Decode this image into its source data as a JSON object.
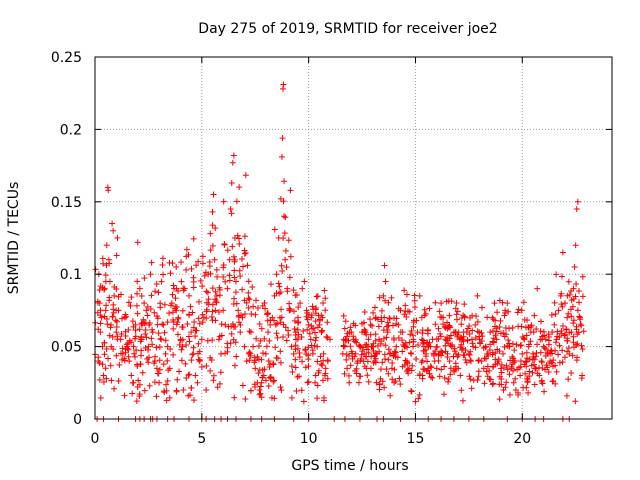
{
  "chart_data": {
    "type": "scatter",
    "title": "Day 275 of 2019, SRMTID for receiver joe2",
    "xlabel": "GPS time / hours",
    "ylabel": "SRMTID / TECUs",
    "xlim": [
      0,
      24.2
    ],
    "ylim": [
      0,
      0.25
    ],
    "xticks": [
      0,
      5,
      10,
      15,
      20
    ],
    "xtick_labels": [
      "0",
      "5",
      "10",
      "15",
      "20"
    ],
    "yticks": [
      0,
      0.05,
      0.1,
      0.15,
      0.2,
      0.25
    ],
    "ytick_labels": [
      "0",
      "0.05",
      "0.1",
      "0.15",
      "0.2",
      "0.25"
    ],
    "grid": true,
    "marker": "+",
    "colors": {
      "marker": "#ff0000",
      "grid": "#a0a0a0",
      "axis": "#000000"
    },
    "series": [
      {
        "name": "SRMTID",
        "points": [
          [
            0.15,
            0.04
          ],
          [
            0.18,
            0.1
          ],
          [
            0.22,
            0.08
          ],
          [
            0.25,
            0.06
          ],
          [
            0.3,
            0.07
          ],
          [
            0.35,
            0.05
          ],
          [
            0.4,
            0.03
          ],
          [
            0.45,
            0.09
          ],
          [
            0.5,
            0.075
          ],
          [
            0.55,
            0.12
          ],
          [
            0.6,
            0.16
          ],
          [
            0.62,
            0.158
          ],
          [
            0.65,
            0.11
          ],
          [
            0.7,
            0.095
          ],
          [
            0.75,
            0.065
          ],
          [
            0.8,
            0.135
          ],
          [
            0.85,
            0.13
          ],
          [
            0.9,
            0.085
          ],
          [
            1.0,
            0.06
          ],
          [
            1.1,
            0.075
          ],
          [
            1.2,
            0.055
          ],
          [
            1.3,
            0.045
          ],
          [
            1.4,
            0.07
          ],
          [
            1.5,
            0.05
          ],
          [
            1.6,
            0.04
          ],
          [
            1.7,
            0.03
          ],
          [
            1.8,
            0.025
          ],
          [
            1.9,
            0.065
          ],
          [
            2.0,
            0.122
          ],
          [
            2.1,
            0.09
          ],
          [
            2.2,
            0.065
          ],
          [
            2.3,
            0.08
          ],
          [
            2.4,
            0.075
          ],
          [
            2.5,
            0.05
          ],
          [
            2.6,
            0.1
          ],
          [
            2.65,
            0.108
          ],
          [
            2.7,
            0.06
          ],
          [
            2.8,
            0.04
          ],
          [
            2.9,
            0.035
          ],
          [
            3.0,
            0.025
          ],
          [
            3.1,
            0.055
          ],
          [
            3.2,
            0.065
          ],
          [
            3.3,
            0.045
          ],
          [
            3.4,
            0.05
          ],
          [
            3.5,
            0.035
          ],
          [
            3.6,
            0.08
          ],
          [
            3.7,
            0.09
          ],
          [
            3.8,
            0.105
          ],
          [
            3.9,
            0.07
          ],
          [
            4.0,
            0.055
          ],
          [
            4.1,
            0.05
          ],
          [
            4.2,
            0.09
          ],
          [
            4.3,
            0.117
          ],
          [
            4.4,
            0.085
          ],
          [
            4.5,
            0.06
          ],
          [
            4.6,
            0.045
          ],
          [
            4.7,
            0.03
          ],
          [
            4.8,
            0.025
          ],
          [
            4.9,
            0.04
          ],
          [
            5.0,
            0.055
          ],
          [
            5.1,
            0.07
          ],
          [
            5.2,
            0.02
          ],
          [
            5.3,
            0.1
          ],
          [
            5.4,
            0.128
          ],
          [
            5.5,
            0.143
          ],
          [
            5.55,
            0.155
          ],
          [
            5.6,
            0.11
          ],
          [
            5.7,
            0.085
          ],
          [
            5.8,
            0.055
          ],
          [
            5.9,
            0.045
          ],
          [
            6.0,
            0.075
          ],
          [
            6.1,
            0.065
          ],
          [
            6.2,
            0.09
          ],
          [
            6.3,
            0.11
          ],
          [
            6.35,
            0.145
          ],
          [
            6.4,
            0.163
          ],
          [
            6.45,
            0.177
          ],
          [
            6.5,
            0.182
          ],
          [
            6.55,
            0.125
          ],
          [
            6.6,
            0.095
          ],
          [
            6.7,
            0.075
          ],
          [
            6.8,
            0.06
          ],
          [
            6.9,
            0.07
          ],
          [
            7.0,
            0.05
          ],
          [
            7.1,
            0.04
          ],
          [
            7.2,
            0.045
          ],
          [
            7.3,
            0.06
          ],
          [
            7.4,
            0.05
          ],
          [
            7.5,
            0.035
          ],
          [
            7.6,
            0.025
          ],
          [
            7.7,
            0.02
          ],
          [
            7.8,
            0.015
          ],
          [
            7.9,
            0.03
          ],
          [
            8.0,
            0.045
          ],
          [
            8.1,
            0.06
          ],
          [
            8.2,
            0.065
          ],
          [
            8.3,
            0.07
          ],
          [
            8.4,
            0.085
          ],
          [
            8.5,
            0.1
          ],
          [
            8.6,
            0.125
          ],
          [
            8.7,
            0.152
          ],
          [
            8.75,
            0.181
          ],
          [
            8.78,
            0.194
          ],
          [
            8.8,
            0.228
          ],
          [
            8.82,
            0.231
          ],
          [
            8.85,
            0.14
          ],
          [
            8.9,
            0.11
          ],
          [
            9.0,
            0.09
          ],
          [
            9.1,
            0.075
          ],
          [
            9.2,
            0.05
          ],
          [
            9.3,
            0.045
          ],
          [
            9.4,
            0.06
          ],
          [
            9.5,
            0.07
          ],
          [
            9.6,
            0.08
          ],
          [
            9.7,
            0.09
          ],
          [
            9.8,
            0.095
          ],
          [
            9.9,
            0.075
          ],
          [
            10.0,
            0.065
          ],
          [
            10.1,
            0.055
          ],
          [
            10.2,
            0.045
          ],
          [
            10.3,
            0.025
          ],
          [
            10.4,
            0.05
          ],
          [
            10.5,
            0.065
          ],
          [
            10.6,
            0.06
          ],
          [
            10.7,
            0.045
          ],
          [
            10.8,
            0.035
          ],
          [
            10.9,
            0.04
          ],
          [
            11.0,
            0.055
          ],
          [
            11.6,
            0.045
          ],
          [
            11.7,
            0.05
          ],
          [
            11.8,
            0.035
          ],
          [
            11.9,
            0.025
          ],
          [
            12.0,
            0.06
          ],
          [
            12.1,
            0.055
          ],
          [
            12.2,
            0.045
          ],
          [
            12.3,
            0.04
          ],
          [
            12.4,
            0.05
          ],
          [
            12.5,
            0.06
          ],
          [
            12.6,
            0.045
          ],
          [
            12.7,
            0.035
          ],
          [
            12.8,
            0.055
          ],
          [
            12.9,
            0.065
          ],
          [
            13.0,
            0.05
          ],
          [
            13.1,
            0.04
          ],
          [
            13.2,
            0.045
          ],
          [
            13.3,
            0.055
          ],
          [
            13.4,
            0.07
          ],
          [
            13.5,
            0.085
          ],
          [
            13.55,
            0.106
          ],
          [
            13.6,
            0.095
          ],
          [
            13.7,
            0.06
          ],
          [
            13.8,
            0.045
          ],
          [
            13.9,
            0.035
          ],
          [
            14.0,
            0.025
          ],
          [
            14.1,
            0.05
          ],
          [
            14.2,
            0.065
          ],
          [
            14.3,
            0.075
          ],
          [
            14.4,
            0.06
          ],
          [
            14.5,
            0.05
          ],
          [
            14.6,
            0.04
          ],
          [
            14.7,
            0.035
          ],
          [
            14.8,
            0.045
          ],
          [
            14.9,
            0.055
          ],
          [
            15.0,
            0.012
          ],
          [
            15.1,
            0.06
          ],
          [
            15.2,
            0.085
          ],
          [
            15.3,
            0.07
          ],
          [
            15.4,
            0.05
          ],
          [
            15.5,
            0.045
          ],
          [
            15.6,
            0.035
          ],
          [
            15.7,
            0.05
          ],
          [
            15.8,
            0.055
          ],
          [
            15.9,
            0.04
          ],
          [
            16.0,
            0.035
          ],
          [
            16.1,
            0.045
          ],
          [
            16.2,
            0.08
          ],
          [
            16.3,
            0.07
          ],
          [
            16.4,
            0.055
          ],
          [
            16.5,
            0.045
          ],
          [
            16.6,
            0.04
          ],
          [
            16.7,
            0.05
          ],
          [
            16.8,
            0.06
          ],
          [
            16.9,
            0.045
          ],
          [
            17.0,
            0.035
          ],
          [
            17.1,
            0.03
          ],
          [
            17.2,
            0.055
          ],
          [
            17.3,
            0.07
          ],
          [
            17.4,
            0.06
          ],
          [
            17.5,
            0.045
          ],
          [
            17.6,
            0.04
          ],
          [
            17.7,
            0.05
          ],
          [
            17.8,
            0.065
          ],
          [
            17.9,
            0.085
          ],
          [
            18.0,
            0.055
          ],
          [
            18.1,
            0.04
          ],
          [
            18.2,
            0.035
          ],
          [
            18.3,
            0.05
          ],
          [
            18.4,
            0.045
          ],
          [
            18.5,
            0.06
          ],
          [
            18.6,
            0.07
          ],
          [
            18.7,
            0.08
          ],
          [
            18.8,
            0.055
          ],
          [
            18.9,
            0.04
          ],
          [
            19.0,
            0.035
          ],
          [
            19.1,
            0.045
          ],
          [
            19.2,
            0.075
          ],
          [
            19.3,
            0.08
          ],
          [
            19.4,
            0.05
          ],
          [
            19.5,
            0.035
          ],
          [
            19.6,
            0.025
          ],
          [
            19.7,
            0.02
          ],
          [
            19.8,
            0.018
          ],
          [
            19.9,
            0.03
          ],
          [
            20.0,
            0.045
          ],
          [
            20.1,
            0.055
          ],
          [
            20.2,
            0.04
          ],
          [
            20.3,
            0.05
          ],
          [
            20.4,
            0.06
          ],
          [
            20.5,
            0.045
          ],
          [
            20.6,
            0.035
          ],
          [
            20.7,
            0.09
          ],
          [
            20.8,
            0.03
          ],
          [
            20.9,
            0.04
          ],
          [
            21.0,
            0.05
          ],
          [
            21.1,
            0.055
          ],
          [
            21.2,
            0.045
          ],
          [
            21.3,
            0.04
          ],
          [
            21.4,
            0.06
          ],
          [
            21.5,
            0.065
          ],
          [
            21.6,
            0.055
          ],
          [
            21.7,
            0.075
          ],
          [
            21.8,
            0.085
          ],
          [
            21.9,
            0.115
          ],
          [
            22.0,
            0.08
          ],
          [
            22.1,
            0.07
          ],
          [
            22.2,
            0.045
          ],
          [
            22.3,
            0.06
          ],
          [
            22.4,
            0.09
          ],
          [
            22.45,
            0.105
          ],
          [
            22.5,
            0.12
          ],
          [
            22.55,
            0.145
          ],
          [
            22.6,
            0.15
          ],
          [
            22.7,
            0.07
          ],
          [
            22.8,
            0.03
          ]
        ]
      }
    ],
    "zero_points_x": [
      0.1,
      0.4,
      1.1,
      1.9,
      2.1,
      2.3,
      2.6,
      2.7,
      2.9,
      3.4,
      3.7,
      4.4,
      5.0,
      5.2,
      5.6,
      5.9,
      6.2,
      6.6,
      7.3,
      7.8,
      8.4,
      9.3,
      10.0,
      11.2,
      11.7,
      12.4,
      13.2,
      13.5,
      14.3,
      15.0,
      15.6,
      16.2,
      16.8,
      17.5,
      18.2,
      19.3,
      20.0,
      20.6,
      21.0,
      21.9,
      22.2
    ],
    "clusters": [
      [
        0.0,
        1.3,
        0.065,
        0.025
      ],
      [
        1.3,
        3.0,
        0.055,
        0.02
      ],
      [
        3.0,
        4.6,
        0.06,
        0.025
      ],
      [
        4.6,
        6.0,
        0.075,
        0.03
      ],
      [
        6.0,
        7.2,
        0.09,
        0.035
      ],
      [
        7.2,
        8.4,
        0.045,
        0.02
      ],
      [
        8.4,
        9.2,
        0.085,
        0.035
      ],
      [
        9.2,
        11.0,
        0.055,
        0.02
      ],
      [
        11.6,
        13.2,
        0.05,
        0.012
      ],
      [
        13.2,
        14.8,
        0.055,
        0.018
      ],
      [
        14.8,
        16.5,
        0.05,
        0.015
      ],
      [
        16.5,
        18.5,
        0.05,
        0.015
      ],
      [
        18.5,
        20.0,
        0.045,
        0.015
      ],
      [
        20.0,
        21.5,
        0.045,
        0.014
      ],
      [
        21.5,
        22.9,
        0.06,
        0.02
      ]
    ]
  }
}
